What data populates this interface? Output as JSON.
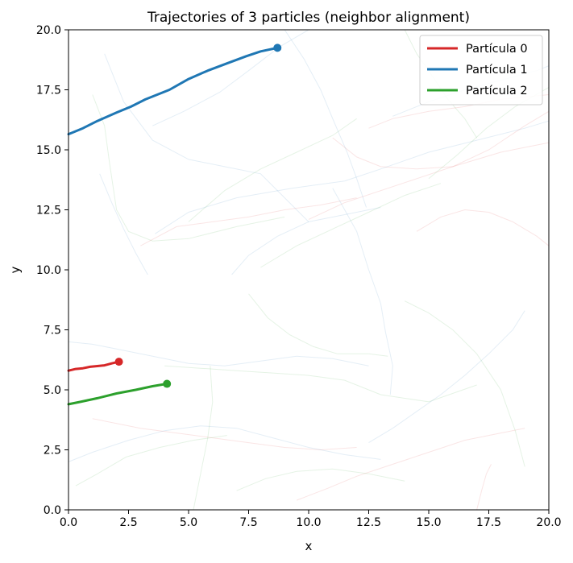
{
  "chart_data": {
    "type": "line",
    "title": "Trajectories of 3 particles (neighbor alignment)",
    "xlabel": "x",
    "ylabel": "y",
    "xlim": [
      0,
      20
    ],
    "ylim": [
      0,
      20
    ],
    "xticks": [
      "0.0",
      "2.5",
      "5.0",
      "7.5",
      "10.0",
      "12.5",
      "15.0",
      "17.5",
      "20.0"
    ],
    "yticks": [
      "0.0",
      "2.5",
      "5.0",
      "7.5",
      "10.0",
      "12.5",
      "15.0",
      "17.5",
      "20.0"
    ],
    "grid": false,
    "legend_position": "top-right",
    "series": [
      {
        "name": "Partícula 0",
        "color": "#d62728",
        "x": [
          0.0,
          0.3,
          0.6,
          0.9,
          1.2,
          1.5,
          1.8,
          2.1
        ],
        "y": [
          5.8,
          5.87,
          5.9,
          5.96,
          5.99,
          6.02,
          6.1,
          6.17
        ]
      },
      {
        "name": "Partícula 1",
        "color": "#1f77b4",
        "x": [
          0.0,
          0.6,
          1.2,
          2.0,
          2.6,
          3.2,
          4.2,
          5.0,
          5.8,
          6.6,
          7.4,
          8.0,
          8.7
        ],
        "y": [
          15.65,
          15.9,
          16.2,
          16.55,
          16.8,
          17.1,
          17.5,
          17.95,
          18.3,
          18.6,
          18.9,
          19.1,
          19.25
        ]
      },
      {
        "name": "Partícula 2",
        "color": "#2ca02c",
        "x": [
          0.0,
          0.5,
          1.2,
          2.0,
          2.8,
          3.5,
          4.1
        ],
        "y": [
          4.4,
          4.5,
          4.65,
          4.85,
          5.0,
          5.15,
          5.25
        ]
      }
    ],
    "background_trails": [
      {
        "color": "#1f77b4",
        "x": [
          3.6,
          5.0,
          7.0,
          9.3,
          11.5,
          13.0,
          15.0,
          17.0,
          19.0,
          20.0
        ],
        "y": [
          11.5,
          12.4,
          13.0,
          13.4,
          13.7,
          14.2,
          14.9,
          15.4,
          15.9,
          16.2
        ]
      },
      {
        "color": "#2ca02c",
        "x": [
          5.0,
          6.5,
          8.0,
          9.5,
          11.0,
          12.0
        ],
        "y": [
          12.0,
          13.3,
          14.2,
          14.9,
          15.6,
          16.3
        ]
      },
      {
        "color": "#d62728",
        "x": [
          10.0,
          11.5,
          13.0,
          14.5,
          16.0,
          18.0,
          20.0
        ],
        "y": [
          12.1,
          12.8,
          13.3,
          13.8,
          14.3,
          14.9,
          15.3
        ]
      },
      {
        "color": "#1f77b4",
        "x": [
          6.8,
          7.5,
          8.7,
          10.0,
          11.5,
          13.0
        ],
        "y": [
          9.8,
          10.6,
          11.4,
          12.0,
          12.3,
          12.6
        ]
      },
      {
        "color": "#2ca02c",
        "x": [
          8.0,
          9.5,
          11.0,
          12.5,
          14.0,
          15.5
        ],
        "y": [
          10.1,
          11.0,
          11.7,
          12.4,
          13.1,
          13.6
        ]
      },
      {
        "color": "#d62728",
        "x": [
          12.5,
          13.5,
          15.0,
          16.5,
          18.0,
          20.0
        ],
        "y": [
          15.9,
          16.3,
          16.6,
          16.8,
          17.1,
          17.3
        ]
      },
      {
        "color": "#1f77b4",
        "x": [
          13.5,
          15.0,
          16.5,
          18.0,
          19.5,
          20.0
        ],
        "y": [
          16.4,
          17.0,
          17.5,
          17.9,
          18.3,
          18.5
        ]
      },
      {
        "color": "#2ca02c",
        "x": [
          15.0,
          16.2,
          17.4,
          18.6,
          20.0
        ],
        "y": [
          13.8,
          14.8,
          15.9,
          16.8,
          17.6
        ]
      },
      {
        "color": "#d62728",
        "x": [
          11.0,
          12.0,
          13.0,
          14.5,
          16.0,
          17.5,
          19.0,
          20.0
        ],
        "y": [
          15.5,
          14.7,
          14.3,
          14.2,
          14.3,
          15.0,
          16.0,
          16.6
        ]
      },
      {
        "color": "#1f77b4",
        "x": [
          9.0,
          9.8,
          10.5,
          11.0,
          11.6,
          12.0,
          12.4
        ],
        "y": [
          20.0,
          18.8,
          17.5,
          16.3,
          14.9,
          13.8,
          12.6
        ]
      },
      {
        "color": "#2ca02c",
        "x": [
          14.0,
          14.5,
          15.2,
          15.8,
          16.5,
          17.0
        ],
        "y": [
          20.0,
          19.0,
          18.0,
          17.1,
          16.3,
          15.5
        ]
      },
      {
        "color": "#d62728",
        "x": [
          3.0,
          4.5,
          6.0,
          7.5,
          9.0,
          10.5,
          12.0
        ],
        "y": [
          11.0,
          11.8,
          12.0,
          12.2,
          12.5,
          12.7,
          13.0
        ]
      },
      {
        "color": "#1f77b4",
        "x": [
          1.5,
          2.3,
          3.5,
          5.0,
          6.5,
          8.0,
          9.0,
          10.0
        ],
        "y": [
          19.0,
          17.0,
          15.4,
          14.6,
          14.3,
          14.0,
          13.0,
          12.0
        ]
      },
      {
        "color": "#2ca02c",
        "x": [
          1.0,
          1.5,
          1.7,
          2.0,
          2.5,
          3.5,
          5.0,
          7.0,
          9.0
        ],
        "y": [
          17.3,
          16.0,
          14.5,
          12.5,
          11.6,
          11.2,
          11.3,
          11.8,
          12.2
        ]
      },
      {
        "color": "#1f77b4",
        "x": [
          0.0,
          1.0,
          2.0,
          3.5,
          5.0,
          6.5,
          8.0,
          9.5,
          11.0,
          12.5
        ],
        "y": [
          7.0,
          6.9,
          6.7,
          6.4,
          6.1,
          6.0,
          6.2,
          6.4,
          6.3,
          6.0
        ]
      },
      {
        "color": "#2ca02c",
        "x": [
          4.0,
          5.5,
          7.0,
          8.5,
          10.0,
          11.5,
          13.0,
          15.0,
          17.0
        ],
        "y": [
          6.0,
          5.9,
          5.8,
          5.7,
          5.6,
          5.4,
          4.8,
          4.5,
          5.2
        ]
      },
      {
        "color": "#d62728",
        "x": [
          1.0,
          2.0,
          3.0,
          4.5,
          6.0,
          7.5,
          9.0,
          10.5,
          12.0
        ],
        "y": [
          3.8,
          3.6,
          3.4,
          3.2,
          3.0,
          2.8,
          2.6,
          2.5,
          2.6
        ]
      },
      {
        "color": "#1f77b4",
        "x": [
          0.0,
          1.0,
          2.5,
          4.0,
          5.5,
          7.0,
          8.5,
          10.0,
          11.5,
          13.0
        ],
        "y": [
          2.0,
          2.4,
          2.9,
          3.3,
          3.5,
          3.4,
          3.0,
          2.6,
          2.3,
          2.1
        ]
      },
      {
        "color": "#2ca02c",
        "x": [
          7.0,
          8.2,
          9.5,
          11.0,
          12.5,
          14.0
        ],
        "y": [
          0.8,
          1.3,
          1.6,
          1.7,
          1.5,
          1.2
        ]
      },
      {
        "color": "#d62728",
        "x": [
          9.5,
          10.8,
          12.0,
          13.5,
          15.0,
          16.5,
          18.0,
          19.0
        ],
        "y": [
          0.4,
          0.9,
          1.4,
          1.9,
          2.4,
          2.9,
          3.2,
          3.4
        ]
      },
      {
        "color": "#1f77b4",
        "x": [
          12.5,
          13.5,
          14.5,
          15.5,
          16.5,
          17.5,
          18.5,
          19.0
        ],
        "y": [
          2.8,
          3.4,
          4.1,
          4.8,
          5.6,
          6.5,
          7.5,
          8.3
        ]
      },
      {
        "color": "#2ca02c",
        "x": [
          14.0,
          15.0,
          16.0,
          17.0,
          18.0,
          18.6,
          19.0
        ],
        "y": [
          8.7,
          8.2,
          7.5,
          6.5,
          5.0,
          3.3,
          1.8
        ]
      },
      {
        "color": "#1f77b4",
        "x": [
          11.0,
          12.0,
          12.5,
          13.0,
          13.2,
          13.5,
          13.4
        ],
        "y": [
          13.4,
          11.6,
          10.0,
          8.6,
          7.4,
          6.0,
          4.8
        ]
      },
      {
        "color": "#2ca02c",
        "x": [
          7.5,
          8.3,
          9.2,
          10.2,
          11.2,
          12.5,
          13.3
        ],
        "y": [
          9.0,
          8.0,
          7.3,
          6.8,
          6.5,
          6.5,
          6.4
        ]
      },
      {
        "color": "#d62728",
        "x": [
          17.0,
          17.2,
          17.4,
          17.6
        ],
        "y": [
          0.0,
          0.8,
          1.5,
          1.9
        ]
      },
      {
        "color": "#1f77b4",
        "x": [
          1.3,
          1.8,
          2.3,
          2.8,
          3.3
        ],
        "y": [
          14.0,
          12.8,
          11.7,
          10.7,
          9.8
        ]
      },
      {
        "color": "#2ca02c",
        "x": [
          5.2,
          5.5,
          5.8,
          6.0,
          5.9
        ],
        "y": [
          0.0,
          1.5,
          3.0,
          4.5,
          6.0
        ]
      },
      {
        "color": "#d62728",
        "x": [
          14.5,
          15.5,
          16.5,
          17.5,
          18.5,
          19.5,
          20.0
        ],
        "y": [
          11.6,
          12.2,
          12.5,
          12.4,
          12.0,
          11.4,
          11.0
        ]
      },
      {
        "color": "#1f77b4",
        "x": [
          3.5,
          4.8,
          6.3,
          7.5,
          8.8,
          10.0
        ],
        "y": [
          16.0,
          16.6,
          17.4,
          18.3,
          19.3,
          20.0
        ]
      },
      {
        "color": "#2ca02c",
        "x": [
          0.3,
          1.2,
          2.4,
          3.8,
          5.2,
          6.6
        ],
        "y": [
          1.0,
          1.5,
          2.2,
          2.6,
          2.9,
          3.1
        ]
      }
    ]
  }
}
